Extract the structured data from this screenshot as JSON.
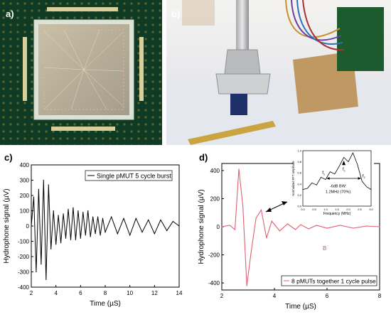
{
  "figure": {
    "panels": [
      {
        "label": "a)"
      },
      {
        "label": "b)"
      },
      {
        "label": "c)"
      },
      {
        "label": "d)"
      }
    ],
    "inset_annotations": {
      "f1": "f",
      "f1_sub": "1",
      "fc": "f",
      "fc_sub": "c",
      "f2": "f",
      "f2_sub": "2",
      "bw_line1": "-6dB BW:",
      "bw_line2": "1.2MHz (70%)"
    },
    "marker_label": "B"
  },
  "chart_data": [
    {
      "type": "line",
      "panel": "c)",
      "title": "",
      "xlabel": "Time (µS)",
      "ylabel": "Hydrophone signal (µV)",
      "xlim": [
        2,
        14
      ],
      "ylim": [
        -400,
        400
      ],
      "xticks": [
        2,
        4,
        6,
        8,
        10,
        12,
        14
      ],
      "yticks": [
        -400,
        -300,
        -200,
        -100,
        0,
        100,
        200,
        300,
        400
      ],
      "legend": {
        "text": "Single pMUT 5 cycle burst",
        "placement": "top-right"
      },
      "series": [
        {
          "name": "Single pMUT 5 cycle burst",
          "color": "#000000",
          "x": [
            2.0,
            2.2,
            2.4,
            2.6,
            2.8,
            3.0,
            3.2,
            3.4,
            3.6,
            3.8,
            4.0,
            4.2,
            4.4,
            4.6,
            4.8,
            5.0,
            5.2,
            5.4,
            5.6,
            5.8,
            6.0,
            6.2,
            6.4,
            6.6,
            6.8,
            7.0,
            7.2,
            7.4,
            7.6,
            7.8,
            8.0,
            8.5,
            9.0,
            9.5,
            10.0,
            10.5,
            11.0,
            11.5,
            12.0,
            12.5,
            13.0,
            13.5,
            14.0
          ],
          "y": [
            0,
            190,
            -300,
            240,
            -250,
            300,
            -350,
            270,
            -150,
            100,
            -120,
            70,
            -110,
            80,
            -80,
            110,
            -90,
            120,
            -90,
            100,
            -80,
            90,
            -60,
            100,
            -70,
            60,
            -50,
            60,
            -60,
            50,
            -40,
            60,
            -50,
            50,
            -60,
            50,
            -40,
            40,
            -50,
            40,
            -30,
            30,
            0
          ]
        }
      ]
    },
    {
      "type": "line",
      "panel": "d)",
      "title": "",
      "xlabel": "Time (µS)",
      "ylabel": "Hydrophone signal (µV)",
      "xlim": [
        2,
        8
      ],
      "ylim": [
        -450,
        450
      ],
      "xticks": [
        2,
        4,
        6,
        8
      ],
      "yticks": [
        -400,
        -200,
        0,
        200,
        400
      ],
      "legend": {
        "text": "8 pMUTs together 1 cycle pulse",
        "placement": "bottom-right"
      },
      "series": [
        {
          "name": "8 pMUTs together 1 cycle pulse",
          "color": "#e06070",
          "x": [
            2.0,
            2.3,
            2.5,
            2.65,
            2.8,
            2.95,
            3.1,
            3.3,
            3.5,
            3.7,
            3.9,
            4.2,
            4.5,
            4.8,
            5.0,
            5.3,
            5.6,
            6.0,
            6.5,
            7.0,
            7.5,
            8.0
          ],
          "y": [
            0,
            10,
            -20,
            410,
            150,
            -420,
            -200,
            60,
            120,
            -80,
            40,
            -30,
            20,
            -20,
            15,
            -15,
            10,
            -10,
            10,
            -10,
            5,
            0
          ]
        }
      ]
    },
    {
      "type": "line",
      "panel": "d) inset",
      "title": "",
      "xlabel": "Frequency (MHz)",
      "ylabel": "Normalized FFT amplitude",
      "xlim": [
        0,
        3
      ],
      "ylim": [
        0,
        1
      ],
      "xticks": [
        0.0,
        0.5,
        1.0,
        1.5,
        2.0,
        2.5,
        3.0
      ],
      "yticks": [
        0.0,
        0.2,
        0.4,
        0.6,
        0.8,
        1.0
      ],
      "series": [
        {
          "name": "",
          "color": "#000000",
          "x": [
            0.0,
            0.2,
            0.4,
            0.6,
            0.8,
            1.0,
            1.2,
            1.4,
            1.6,
            1.8,
            2.0,
            2.2,
            2.4,
            2.6,
            2.8,
            3.0
          ],
          "y": [
            0.3,
            0.32,
            0.42,
            0.38,
            0.52,
            0.48,
            0.62,
            0.58,
            0.72,
            0.88,
            0.8,
            0.96,
            0.75,
            0.45,
            0.35,
            0.3
          ]
        }
      ]
    }
  ]
}
